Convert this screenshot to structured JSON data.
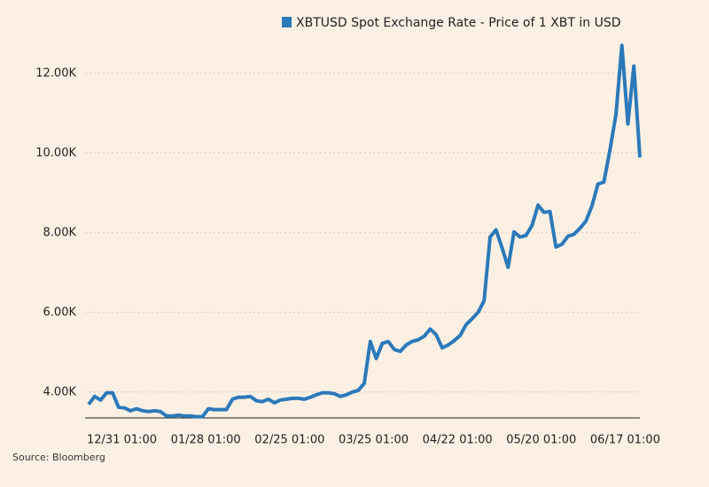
{
  "chart_data": {
    "type": "line",
    "series": [
      {
        "name": "XBTUSD Spot Exchange Rate - Price of 1 XBT in USD",
        "color": "#2b79b9",
        "values": [
          3690,
          3890,
          3800,
          3980,
          3980,
          3620,
          3600,
          3530,
          3580,
          3530,
          3510,
          3530,
          3510,
          3400,
          3400,
          3420,
          3400,
          3400,
          3380,
          3380,
          3580,
          3560,
          3560,
          3560,
          3820,
          3870,
          3870,
          3890,
          3780,
          3760,
          3820,
          3730,
          3800,
          3820,
          3840,
          3840,
          3820,
          3870,
          3930,
          3980,
          3980,
          3960,
          3890,
          3930,
          4000,
          4040,
          4220,
          5270,
          4840,
          5220,
          5270,
          5070,
          5020,
          5180,
          5270,
          5310,
          5400,
          5580,
          5440,
          5110,
          5180,
          5290,
          5420,
          5690,
          5840,
          6000,
          6290,
          7890,
          8070,
          7620,
          7130,
          8020,
          7890,
          7930,
          8180,
          8690,
          8510,
          8530,
          7640,
          7710,
          7910,
          7960,
          8110,
          8290,
          8670,
          9220,
          9270,
          10070,
          10960,
          12700,
          10730,
          12180,
          9890
        ]
      }
    ],
    "categories": [
      "12/31 01:00",
      null,
      null,
      null,
      null,
      null,
      null,
      null,
      null,
      null,
      null,
      null,
      null,
      null,
      "01/28 01:00",
      null,
      null,
      null,
      null,
      null,
      null,
      null,
      null,
      null,
      null,
      null,
      null,
      null,
      "02/25 01:00",
      null,
      null,
      null,
      null,
      null,
      null,
      null,
      null,
      null,
      null,
      null,
      null,
      null,
      "03/25 01:00",
      null,
      null,
      null,
      null,
      null,
      null,
      null,
      null,
      null,
      null,
      null,
      null,
      null,
      "04/22 01:00",
      null,
      null,
      null,
      null,
      null,
      null,
      null,
      null,
      null,
      null,
      null,
      null,
      null,
      "05/20 01:00",
      null,
      null,
      null,
      null,
      null,
      null,
      null,
      null,
      null,
      null,
      null,
      null,
      null,
      "06/17 01:00",
      null,
      null,
      null,
      null,
      null,
      null,
      null,
      null
    ],
    "ylim": [
      3350,
      12800
    ],
    "yticks": [
      {
        "value": 4000,
        "label": "4.00K"
      },
      {
        "value": 6000,
        "label": "6.00K"
      },
      {
        "value": 8000,
        "label": "8.00K"
      },
      {
        "value": 10000,
        "label": "10.00K"
      },
      {
        "value": 12000,
        "label": "12.00K"
      }
    ],
    "grid": true,
    "source": "Source: Bloomberg"
  }
}
